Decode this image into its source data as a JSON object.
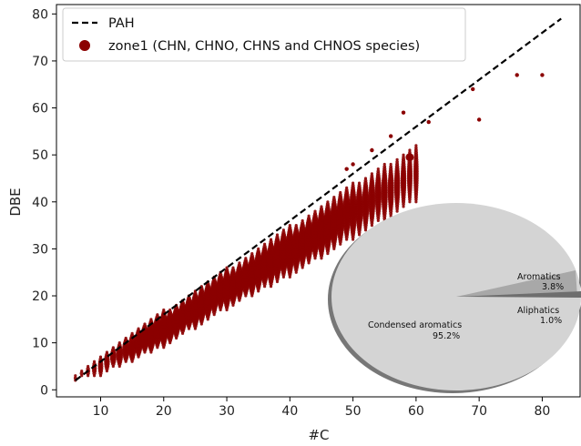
{
  "chart_data": {
    "type": "scatter",
    "xlabel": "#C",
    "ylabel": "DBE",
    "xlim": [
      3,
      86
    ],
    "ylim": [
      -1.5,
      82
    ],
    "xticks": [
      10,
      20,
      30,
      40,
      50,
      60,
      70,
      80
    ],
    "yticks": [
      0,
      10,
      20,
      30,
      40,
      50,
      60,
      70,
      80
    ],
    "grid": false,
    "legend_placement": "top-left",
    "legend": [
      {
        "label": "PAH",
        "style": "dashed-line",
        "color": "#000000"
      },
      {
        "label": "zone1 (CHN, CHNO, CHNS and CHNOS species)",
        "style": "marker",
        "color": "#8b0000"
      }
    ],
    "series": [
      {
        "name": "PAH",
        "type": "line",
        "color": "#000000",
        "points": [
          [
            6,
            2
          ],
          [
            83,
            79
          ]
        ]
      },
      {
        "name": "zone1 (CHN, CHNO, CHNS and CHNOS species)",
        "type": "scatter",
        "color": "#8b0000",
        "band_lower": [
          [
            6,
            2
          ],
          [
            10,
            3
          ],
          [
            20,
            9
          ],
          [
            30,
            17
          ],
          [
            40,
            24
          ],
          [
            50,
            32
          ],
          [
            60,
            40
          ]
        ],
        "band_upper": [
          [
            6,
            3
          ],
          [
            10,
            7
          ],
          [
            20,
            17
          ],
          [
            30,
            26
          ],
          [
            40,
            35
          ],
          [
            50,
            44
          ],
          [
            60,
            52
          ]
        ],
        "outliers": [
          [
            49,
            47
          ],
          [
            50,
            48
          ],
          [
            53,
            51
          ],
          [
            56,
            54
          ],
          [
            58,
            59
          ],
          [
            59,
            49.5
          ],
          [
            62,
            57
          ],
          [
            69,
            64
          ],
          [
            70,
            57.5
          ],
          [
            76,
            67
          ],
          [
            80,
            67
          ]
        ]
      }
    ],
    "inset_pie": {
      "slices": [
        {
          "label": "Condensed aromatics",
          "value": 95.2,
          "display": "95.2%",
          "color": "#d4d4d4"
        },
        {
          "label": "Aromatics",
          "value": 3.8,
          "display": "3.8%",
          "color": "#a8a8a8"
        },
        {
          "label": "Aliphatics",
          "value": 1.0,
          "display": "1.0%",
          "color": "#6e6e6e"
        }
      ]
    }
  }
}
